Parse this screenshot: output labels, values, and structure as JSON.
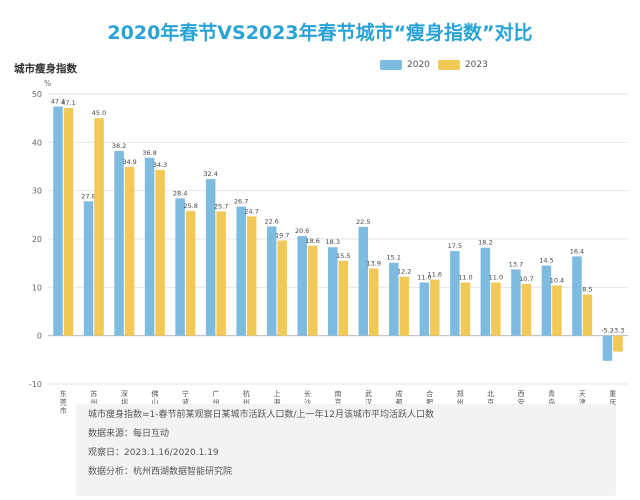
{
  "title": "2020年春节VS2023年春节城市“瘦身指数”对比",
  "colors": {
    "title": "#29a3d6",
    "s2020": "#7dbbe0",
    "s2023": "#f2c957",
    "grid": "#e6e6e6"
  },
  "notes": {
    "definition": "城市瘦身指数=1-春节前某观察日某城市活跃人口数/上一年12月该城市平均活跃人口数",
    "source": "数据来源：每日互动",
    "dates": "观察日：2023.1.16/2020.1.19",
    "analysis": "数据分析：杭州西湖数据智能研究院"
  },
  "chart_data": {
    "type": "bar",
    "ylabel": "城市瘦身指数",
    "yunit": "%",
    "ylim": [
      -10,
      50
    ],
    "yticks": [
      -10,
      0,
      10,
      20,
      30,
      40,
      50
    ],
    "grid": true,
    "legend_position": "top-right",
    "categories": [
      "东莞市",
      "苏州市",
      "深圳市",
      "佛山市",
      "宁波市",
      "广州市",
      "杭州市",
      "上海市",
      "长沙市",
      "南京市",
      "武汉市",
      "成都市",
      "合肥市",
      "郑州市",
      "北京市",
      "西安市",
      "青岛市",
      "天津市",
      "重庆市"
    ],
    "series": [
      {
        "name": "2020",
        "values": [
          47.4,
          27.8,
          38.2,
          36.8,
          28.4,
          32.4,
          26.7,
          22.6,
          20.6,
          18.3,
          22.5,
          15.1,
          11.0,
          17.5,
          18.2,
          13.7,
          14.5,
          16.4,
          -5.2
        ]
      },
      {
        "name": "2023",
        "values": [
          47.1,
          45.0,
          34.9,
          34.3,
          25.8,
          25.7,
          24.7,
          19.7,
          18.6,
          15.5,
          13.9,
          12.2,
          11.6,
          11.0,
          11.0,
          10.7,
          10.4,
          8.5,
          -3.3
        ]
      }
    ]
  }
}
